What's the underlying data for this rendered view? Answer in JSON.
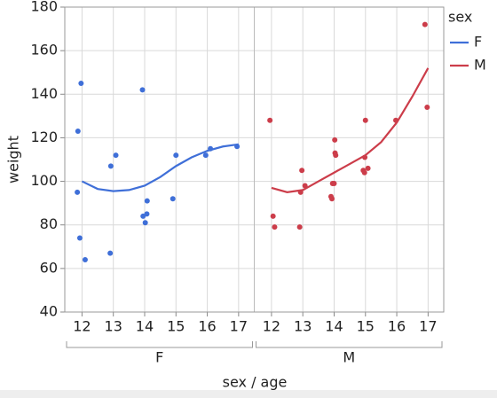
{
  "chart_data": {
    "type": "scatter",
    "y_label": "weight",
    "x_label": "sex / age",
    "legend_title": "sex",
    "panels": [
      "F",
      "M"
    ],
    "ylim": [
      40,
      180
    ],
    "yticks": [
      40,
      60,
      80,
      100,
      120,
      140,
      160,
      180
    ],
    "xlim": [
      11.45,
      17.5
    ],
    "xticks": [
      12,
      13,
      14,
      15,
      16,
      17
    ],
    "grid": true,
    "series": [
      {
        "name": "F",
        "color": "#3f6fd8",
        "x": [
          11.87,
          11.97,
          11.85,
          11.93,
          12.1,
          12.9,
          12.92,
          13.08,
          13.93,
          13.95,
          14.02,
          14.07,
          14.08,
          14.9,
          15.0,
          15.95,
          16.1,
          16.95
        ],
        "values": [
          123,
          145,
          95,
          74,
          64,
          67,
          107,
          112,
          142,
          84,
          81,
          85,
          91,
          92,
          112,
          112,
          115,
          116
        ],
        "smoother": {
          "x": [
            12,
            12.5,
            13,
            13.5,
            14,
            14.5,
            15,
            15.5,
            16,
            16.5,
            17
          ],
          "values": [
            100,
            96.5,
            95.5,
            96,
            98,
            102,
            107,
            111,
            114,
            116,
            117
          ]
        }
      },
      {
        "name": "M",
        "color": "#cc3d4a",
        "x": [
          11.95,
          12.05,
          12.1,
          12.9,
          12.93,
          12.97,
          13.07,
          13.9,
          13.93,
          13.95,
          14.0,
          14.02,
          14.03,
          14.05,
          14.93,
          14.97,
          14.98,
          15.0,
          15.08,
          15.97,
          16.9,
          16.97
        ],
        "values": [
          128,
          84,
          79,
          79,
          95,
          105,
          98,
          93,
          92,
          99,
          99,
          119,
          113,
          112,
          105,
          104,
          111,
          128,
          106,
          128,
          172,
          134
        ],
        "smoother": {
          "x": [
            12,
            12.5,
            13,
            13.5,
            14,
            14.5,
            15,
            15.5,
            16,
            16.5,
            17
          ],
          "values": [
            97,
            95,
            96,
            100,
            104,
            108,
            112,
            118,
            127,
            139,
            152
          ]
        }
      }
    ]
  }
}
